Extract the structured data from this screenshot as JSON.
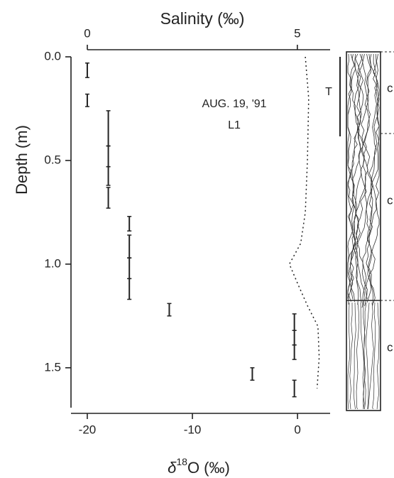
{
  "chart_data": {
    "type": "depth-profile",
    "top_axis_label": "Salinity (‰)",
    "y_label": "Depth (m)",
    "x_label": {
      "symbol": "δ",
      "superscript": "18",
      "rest": "O (‰)"
    },
    "annotation": [
      "AUG. 19, '91",
      "L1"
    ],
    "marker_T": "T",
    "core_labels": [
      "c",
      "c",
      "c"
    ],
    "ylim": [
      0,
      1.72
    ],
    "y_inverted": true,
    "yticks": [
      {
        "value": 0,
        "label": "0.0"
      },
      0.5,
      {
        "value": 1,
        "label": "1.0"
      },
      1.5
    ],
    "xlim": [
      -21.55,
      3.1
    ],
    "xticks": [
      -20,
      -10,
      0
    ],
    "salinity_xlim": [
      0,
      5.78
    ],
    "salinity_xticks": [
      0,
      5
    ],
    "samples": [
      {
        "d18o": -20,
        "depth_top": 0.03,
        "depth_bottom": 0.1
      },
      {
        "d18o": -20,
        "depth_top": 0.18,
        "depth_bottom": 0.24
      },
      {
        "d18o": -18,
        "depth_top": 0.26,
        "depth_bottom": 0.43
      },
      {
        "d18o": -18,
        "depth_top": 0.43,
        "depth_bottom": 0.53
      },
      {
        "d18o": -18,
        "depth_top": 0.53,
        "depth_bottom": 0.62
      },
      {
        "d18o": -18,
        "depth_top": 0.63,
        "depth_bottom": 0.73
      },
      {
        "d18o": -16,
        "depth_top": 0.77,
        "depth_bottom": 0.84
      },
      {
        "d18o": -16,
        "depth_top": 0.86,
        "depth_bottom": 0.97
      },
      {
        "d18o": -16,
        "depth_top": 0.97,
        "depth_bottom": 1.07
      },
      {
        "d18o": -16,
        "depth_top": 1.07,
        "depth_bottom": 1.17
      },
      {
        "d18o": -12.2,
        "depth_top": 1.19,
        "depth_bottom": 1.25
      },
      {
        "d18o": -0.3,
        "depth_top": 1.24,
        "depth_bottom": 1.32
      },
      {
        "d18o": -0.3,
        "depth_top": 1.32,
        "depth_bottom": 1.39
      },
      {
        "d18o": -0.3,
        "depth_top": 1.39,
        "depth_bottom": 1.46
      },
      {
        "d18o": -4.3,
        "depth_top": 1.5,
        "depth_bottom": 1.56
      },
      {
        "d18o": -0.3,
        "depth_top": 1.56,
        "depth_bottom": 1.64
      }
    ],
    "salinity": {
      "depth": [
        0,
        0.2,
        0.5,
        0.75,
        0.9,
        1.0,
        1.1,
        1.2,
        1.3,
        1.45,
        1.6
      ],
      "values": [
        5.19,
        5.27,
        5.24,
        5.19,
        5.08,
        4.81,
        5.02,
        5.24,
        5.49,
        5.52,
        5.47
      ]
    }
  }
}
